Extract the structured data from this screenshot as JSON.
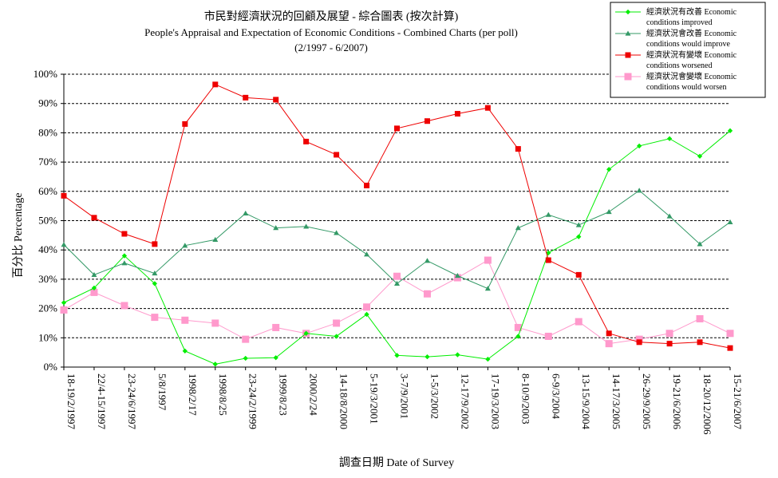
{
  "chart_data": {
    "type": "line",
    "title": "市民對經濟狀況的回顧及展望 - 綜合圖表  (按次計算)",
    "subtitle": "People's Appraisal and Expectation of Economic Conditions - Combined Charts  (per poll)",
    "period": "(2/1997 - 6/2007)",
    "xlabel": "調查日期 Date of Survey",
    "ylabel": "百分比 Percentage",
    "ylim": [
      0,
      100
    ],
    "yticks": [
      "0%",
      "10%",
      "20%",
      "30%",
      "40%",
      "50%",
      "60%",
      "70%",
      "80%",
      "90%",
      "100%"
    ],
    "grid": true,
    "legend_position": "top-right",
    "categories": [
      "18-19/2/1997",
      "22/4-15/1997",
      "23-24/6/1997",
      "5/8/1997",
      "1998/2/17",
      "1998/8/25",
      "23-24/2/1999",
      "1999/8/23",
      "2000/2/24",
      "14-18/8/2000",
      "5-19/3/2001",
      "3-7/9/2001",
      "1-5/3/2002",
      "12-17/9/2002",
      "17-19/3/2003",
      "8-10/9/2003",
      "6-9/3/2004",
      "13-15/9/2004",
      "14-17/3/2005",
      "26-29/9/2005",
      "19-21/6/2006",
      "18-20/12/2006",
      "15-21/6/2007"
    ],
    "series": [
      {
        "name_zh": "經濟狀況有改善",
        "name_en": "Economic conditions improved",
        "color": "#00ee00",
        "marker": "diamond",
        "values": [
          22.0,
          27.0,
          38.0,
          28.5,
          5.5,
          1.0,
          3.0,
          3.2,
          11.5,
          10.5,
          18.0,
          4.0,
          3.5,
          4.2,
          2.7,
          10.5,
          39.0,
          44.5,
          67.5,
          75.5,
          78.0,
          72.0,
          80.7
        ]
      },
      {
        "name_zh": "經濟狀況會改善",
        "name_en": "Economic conditions would improve",
        "color": "#339966",
        "marker": "triangle",
        "values": [
          41.8,
          31.5,
          35.5,
          32.0,
          41.5,
          43.5,
          52.5,
          47.5,
          48.0,
          45.8,
          38.5,
          28.5,
          36.3,
          31.2,
          26.8,
          47.5,
          52.0,
          48.5,
          53.0,
          60.3,
          51.5,
          42.0,
          49.5
        ]
      },
      {
        "name_zh": "經濟狀況有變壞",
        "name_en": "Economic conditions worsened",
        "color": "#ee0000",
        "marker": "square",
        "values": [
          58.5,
          51.0,
          45.5,
          42.0,
          83.0,
          96.5,
          92.0,
          91.3,
          77.0,
          72.5,
          62.0,
          81.5,
          84.0,
          86.5,
          88.5,
          74.5,
          36.5,
          31.5,
          11.5,
          8.5,
          8.0,
          8.5,
          6.5
        ]
      },
      {
        "name_zh": "經濟狀況會變壞",
        "name_en": "Economic conditions would worsen",
        "color": "#ff99cc",
        "marker": "square",
        "values": [
          19.5,
          25.5,
          21.0,
          17.0,
          16.0,
          15.0,
          9.5,
          13.5,
          11.5,
          15.0,
          20.5,
          31.0,
          25.0,
          30.5,
          36.5,
          13.5,
          10.5,
          15.5,
          8.0,
          9.5,
          11.5,
          16.5,
          11.5
        ]
      }
    ]
  }
}
